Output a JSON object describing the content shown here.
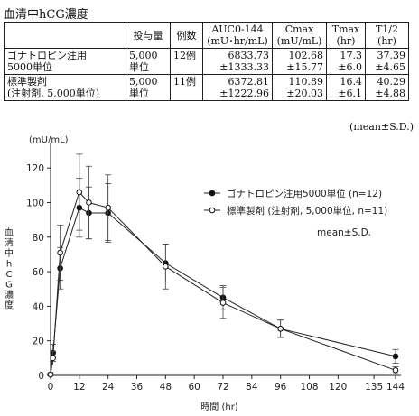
{
  "table": {
    "title": "血清中hCG濃度",
    "headers": [
      "",
      "投与量",
      "例数",
      "AUC0-144\n(mU･hr/mL)",
      "Cmax\n(mU/mL)",
      "Tmax\n(hr)",
      "T1/2\n(hr)"
    ],
    "rows": [
      [
        "ゴナトロピン注用\n5000単位",
        "5,000\n単位",
        "12例",
        "6833.73\n±1333.33",
        "102.68\n±15.77",
        "17.3\n±6.0",
        "37.39\n±4.65"
      ],
      [
        "標準製剤\n(注射剤, 5,000単位)",
        "5,000\n単位",
        "11例",
        "6372.81\n±1222.96",
        "110.89\n±20.03",
        "16.4\n±6.1",
        "40.29\n±4.88"
      ]
    ],
    "footnote": "(mean±S.D.)"
  },
  "chart_data": {
    "type": "line",
    "ylabel_unit": "(mU/mL)",
    "ylabel": "血清中hCG濃度",
    "xlabel": "時間 (hr)",
    "xlim": [
      0,
      144
    ],
    "ylim": [
      0,
      130
    ],
    "xticks": [
      0,
      12,
      24,
      36,
      48,
      60,
      72,
      84,
      96,
      108,
      120,
      135,
      144
    ],
    "yticks": [
      0,
      20,
      40,
      60,
      80,
      100,
      120
    ],
    "annotation": "mean±S.D.",
    "legend_position": "right",
    "series": [
      {
        "name": "ゴナトロピン注用5000単位 (n=12)",
        "marker": "filled-circle",
        "points": [
          {
            "x": 0,
            "y": 0.5,
            "sd": 1
          },
          {
            "x": 1,
            "y": 13,
            "sd": 5
          },
          {
            "x": 4,
            "y": 62,
            "sd": 12
          },
          {
            "x": 12,
            "y": 97,
            "sd": 17
          },
          {
            "x": 16,
            "y": 94,
            "sd": 15
          },
          {
            "x": 24,
            "y": 94,
            "sd": 17
          },
          {
            "x": 48,
            "y": 65,
            "sd": 11
          },
          {
            "x": 72,
            "y": 45,
            "sd": 7
          },
          {
            "x": 96,
            "y": 27,
            "sd": 5
          },
          {
            "x": 144,
            "y": 11,
            "sd": 4
          }
        ]
      },
      {
        "name": "標準製剤 (注射剤, 5,000単位, n=11)",
        "marker": "open-circle",
        "points": [
          {
            "x": 0,
            "y": 0.5,
            "sd": 1
          },
          {
            "x": 1,
            "y": 10,
            "sd": 4
          },
          {
            "x": 4,
            "y": 71,
            "sd": 16
          },
          {
            "x": 12,
            "y": 106,
            "sd": 22
          },
          {
            "x": 16,
            "y": 100,
            "sd": 21
          },
          {
            "x": 24,
            "y": 97,
            "sd": 19
          },
          {
            "x": 48,
            "y": 63,
            "sd": 13
          },
          {
            "x": 72,
            "y": 42,
            "sd": 9
          },
          {
            "x": 96,
            "y": 27,
            "sd": 5
          },
          {
            "x": 144,
            "y": 3,
            "sd": 2
          }
        ]
      }
    ]
  }
}
